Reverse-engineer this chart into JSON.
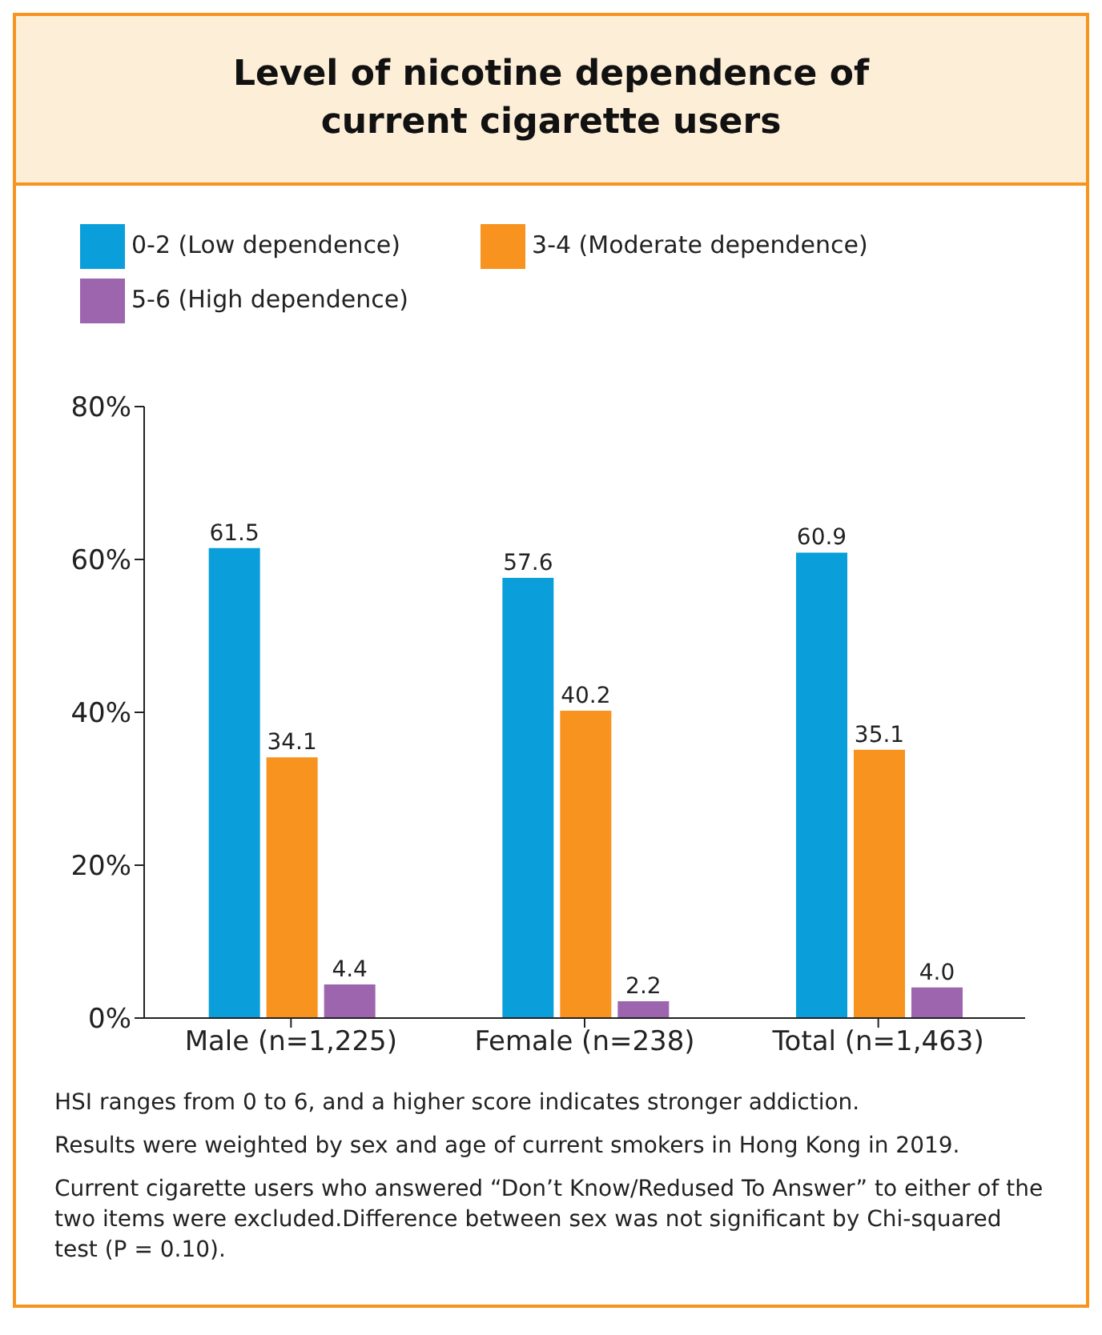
{
  "chart_data": {
    "type": "bar",
    "title": "Level of nicotine dependence of\ncurrent cigarette users",
    "categories": [
      "Male (n=1,225)",
      "Female (n=238)",
      "Total (n=1,463)"
    ],
    "series": [
      {
        "name": "0-2 (Low dependence)",
        "color": "#0a9fdb",
        "values": [
          61.5,
          57.6,
          60.9
        ],
        "value_labels": [
          "61.5",
          "57.6",
          "60.9"
        ]
      },
      {
        "name": "3-4 (Moderate dependence)",
        "color": "#f7931e",
        "values": [
          34.1,
          40.2,
          35.1
        ],
        "value_labels": [
          "34.1",
          "40.2",
          "35.1"
        ]
      },
      {
        "name": "5-6 (High dependence)",
        "color": "#9d65ad",
        "values": [
          4.4,
          2.2,
          4.0
        ],
        "value_labels": [
          "4.4",
          "2.2",
          "4.0"
        ]
      }
    ],
    "ylim": [
      0,
      80
    ],
    "yticks": [
      {
        "value": 0,
        "label": "0%"
      },
      {
        "value": 20,
        "label": "20%"
      },
      {
        "value": 40,
        "label": "40%"
      },
      {
        "value": 60,
        "label": "60%"
      },
      {
        "value": 80,
        "label": "80%"
      }
    ],
    "grid": false,
    "legend": "top left",
    "annotations": [
      "HSI ranges from 0 to 6, and a higher score indicates stronger addiction.",
      "Results were weighted by sex and age of current smokers in Hong Kong in 2019.",
      "Current cigarette users who answered “Don’t Know/Redused To Answer” to either of the two items were excluded.Difference between sex was not significant by Chi-squared test (P = 0.10)."
    ]
  }
}
